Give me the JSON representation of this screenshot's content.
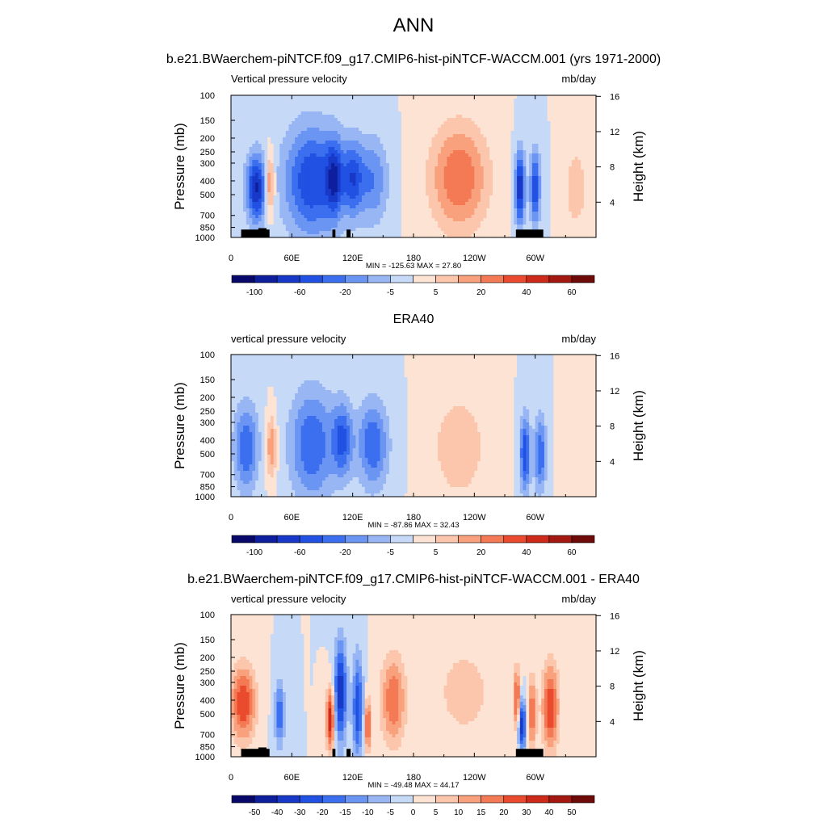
{
  "figure": {
    "title": "ANN"
  },
  "colormaps": {
    "main": [
      "#08086b",
      "#0e1f9e",
      "#1838c8",
      "#2151e3",
      "#3b6fef",
      "#6b95f2",
      "#98b6f4",
      "#c6d9f7",
      "#fde3d3",
      "#fcc6ad",
      "#f9a07c",
      "#f47a55",
      "#ea4a2d",
      "#cd2a1a",
      "#a31911",
      "#6e0a08"
    ],
    "diff": [
      "#08086b",
      "#0e1f9e",
      "#1838c8",
      "#2151e3",
      "#3b6fef",
      "#6b95f2",
      "#98b6f4",
      "#c6d9f7",
      "#fde3d3",
      "#fcc6ad",
      "#f9a07c",
      "#f47a55",
      "#ea4a2d",
      "#cd2a1a",
      "#a31911",
      "#6e0a08"
    ]
  },
  "chart_data": [
    {
      "type": "heatmap",
      "id": "model",
      "title": "b.e21.BWaerchem-piNTCF.f09_g17.CMIP6-hist-piNTCF-WACCM.001 (yrs 1971-2000)",
      "left_label": "Vertical pressure velocity",
      "right_label": "mb/day",
      "ylabel": "Pressure (mb)",
      "y2label": "Height (km)",
      "x_ticks": [
        "0",
        "60E",
        "120E",
        "180",
        "120W",
        "60W"
      ],
      "x_tick_lons": [
        0,
        60,
        120,
        180,
        240,
        300
      ],
      "xlim": [
        0,
        360
      ],
      "y_ticks": [
        "100",
        "150",
        "200",
        "250",
        "300",
        "400",
        "500",
        "700",
        "850",
        "1000"
      ],
      "y_tick_values": [
        100,
        150,
        200,
        250,
        300,
        400,
        500,
        700,
        850,
        1000
      ],
      "ylim": [
        100,
        1000
      ],
      "y_scale": "log",
      "y2_ticks": [
        "4",
        "8",
        "12",
        "16"
      ],
      "y2_tick_values": [
        4,
        8,
        12,
        16
      ],
      "min_max_text": "MIN = -125.63  MAX =  27.80",
      "colorbar_labels": [
        "-100",
        "-60",
        "-20",
        "-5",
        "5",
        "20",
        "40",
        "60"
      ],
      "colormap": "main",
      "topography": true,
      "features": [
        {
          "lon": 25,
          "p": 450,
          "wl": 10,
          "wp": 0.55,
          "amp": -6
        },
        {
          "lon": 38,
          "p": 420,
          "wl": 5,
          "wp": 0.5,
          "amp": 4
        },
        {
          "lon": 80,
          "p": 400,
          "wl": 28,
          "wp": 0.9,
          "amp": -5
        },
        {
          "lon": 102,
          "p": 380,
          "wl": 8,
          "wp": 0.6,
          "amp": -4
        },
        {
          "lon": 120,
          "p": 380,
          "wl": 10,
          "wp": 0.6,
          "amp": -4
        },
        {
          "lon": 140,
          "p": 400,
          "wl": 15,
          "wp": 0.7,
          "amp": -3
        },
        {
          "lon": 225,
          "p": 380,
          "wl": 28,
          "wp": 0.85,
          "amp": 4
        },
        {
          "lon": 285,
          "p": 450,
          "wl": 5,
          "wp": 0.6,
          "amp": -6
        },
        {
          "lon": 300,
          "p": 450,
          "wl": 5,
          "wp": 0.6,
          "amp": -5
        },
        {
          "lon": 340,
          "p": 450,
          "wl": 10,
          "wp": 0.6,
          "amp": 2
        }
      ]
    },
    {
      "type": "heatmap",
      "id": "obs",
      "title": "ERA40",
      "left_label": "vertical pressure velocity",
      "right_label": "mb/day",
      "ylabel": "Pressure (mb)",
      "y2label": "Height (km)",
      "x_ticks": [
        "0",
        "60E",
        "120E",
        "180",
        "120W",
        "60W"
      ],
      "x_tick_lons": [
        0,
        60,
        120,
        180,
        240,
        300
      ],
      "xlim": [
        0,
        360
      ],
      "y_ticks": [
        "100",
        "150",
        "200",
        "250",
        "300",
        "400",
        "500",
        "700",
        "850",
        "1000"
      ],
      "y_tick_values": [
        100,
        150,
        200,
        250,
        300,
        400,
        500,
        700,
        850,
        1000
      ],
      "ylim": [
        100,
        1000
      ],
      "y_scale": "log",
      "y2_ticks": [
        "4",
        "8",
        "12",
        "16"
      ],
      "y2_tick_values": [
        4,
        8,
        12,
        16
      ],
      "min_max_text": "MIN = -87.86  MAX =  32.43",
      "colorbar_labels": [
        "-100",
        "-60",
        "-20",
        "-5",
        "5",
        "20",
        "40",
        "60"
      ],
      "colormap": "main",
      "topography": false,
      "features": [
        {
          "lon": 15,
          "p": 450,
          "wl": 12,
          "wp": 0.7,
          "amp": -4
        },
        {
          "lon": 40,
          "p": 450,
          "wl": 5,
          "wp": 0.5,
          "amp": 3
        },
        {
          "lon": 80,
          "p": 430,
          "wl": 22,
          "wp": 0.9,
          "amp": -4
        },
        {
          "lon": 110,
          "p": 400,
          "wl": 10,
          "wp": 0.6,
          "amp": -4
        },
        {
          "lon": 140,
          "p": 430,
          "wl": 15,
          "wp": 0.7,
          "amp": -4
        },
        {
          "lon": 225,
          "p": 450,
          "wl": 25,
          "wp": 0.8,
          "amp": 2
        },
        {
          "lon": 290,
          "p": 500,
          "wl": 5,
          "wp": 0.6,
          "amp": -5
        },
        {
          "lon": 305,
          "p": 500,
          "wl": 6,
          "wp": 0.6,
          "amp": -4
        },
        {
          "lon": 340,
          "p": 500,
          "wl": 12,
          "wp": 0.6,
          "amp": 1
        }
      ]
    },
    {
      "type": "heatmap",
      "id": "diff",
      "title": "b.e21.BWaerchem-piNTCF.f09_g17.CMIP6-hist-piNTCF-WACCM.001 - ERA40",
      "left_label": "vertical pressure velocity",
      "right_label": "mb/day",
      "ylabel": "Pressure (mb)",
      "y2label": "Height (km)",
      "x_ticks": [
        "0",
        "60E",
        "120E",
        "180",
        "120W",
        "60W"
      ],
      "x_tick_lons": [
        0,
        60,
        120,
        180,
        240,
        300
      ],
      "xlim": [
        0,
        360
      ],
      "y_ticks": [
        "100",
        "150",
        "200",
        "250",
        "300",
        "400",
        "500",
        "700",
        "850",
        "1000"
      ],
      "y_tick_values": [
        100,
        150,
        200,
        250,
        300,
        400,
        500,
        700,
        850,
        1000
      ],
      "ylim": [
        100,
        1000
      ],
      "y_scale": "log",
      "y2_ticks": [
        "4",
        "8",
        "12",
        "16"
      ],
      "y2_tick_values": [
        4,
        8,
        12,
        16
      ],
      "min_max_text": "MIN = -49.48  MAX = 44.17",
      "colorbar_labels": [
        "-50",
        "-40",
        "-30",
        "-20",
        "-15",
        "-10",
        "-5",
        "0",
        "5",
        "10",
        "15",
        "20",
        "30",
        "40",
        "50"
      ],
      "colormap": "diff",
      "topography": true,
      "features": [
        {
          "lon": 12,
          "p": 420,
          "wl": 12,
          "wp": 0.6,
          "amp": 5
        },
        {
          "lon": 48,
          "p": 500,
          "wl": 5,
          "wp": 0.5,
          "amp": -4
        },
        {
          "lon": 98,
          "p": 550,
          "wl": 4,
          "wp": 0.5,
          "amp": 6
        },
        {
          "lon": 108,
          "p": 350,
          "wl": 6,
          "wp": 0.8,
          "amp": -6
        },
        {
          "lon": 125,
          "p": 450,
          "wl": 5,
          "wp": 0.8,
          "amp": -5
        },
        {
          "lon": 135,
          "p": 600,
          "wl": 3,
          "wp": 0.4,
          "amp": 5
        },
        {
          "lon": 160,
          "p": 400,
          "wl": 12,
          "wp": 0.7,
          "amp": 4
        },
        {
          "lon": 230,
          "p": 350,
          "wl": 30,
          "wp": 0.8,
          "amp": 1.5
        },
        {
          "lon": 287,
          "p": 600,
          "wl": 4,
          "wp": 0.4,
          "amp": -6
        },
        {
          "lon": 282,
          "p": 400,
          "wl": 3,
          "wp": 0.5,
          "amp": 5
        },
        {
          "lon": 297,
          "p": 500,
          "wl": 4,
          "wp": 0.6,
          "amp": 4
        },
        {
          "lon": 315,
          "p": 450,
          "wl": 8,
          "wp": 0.7,
          "amp": 5
        }
      ]
    }
  ]
}
